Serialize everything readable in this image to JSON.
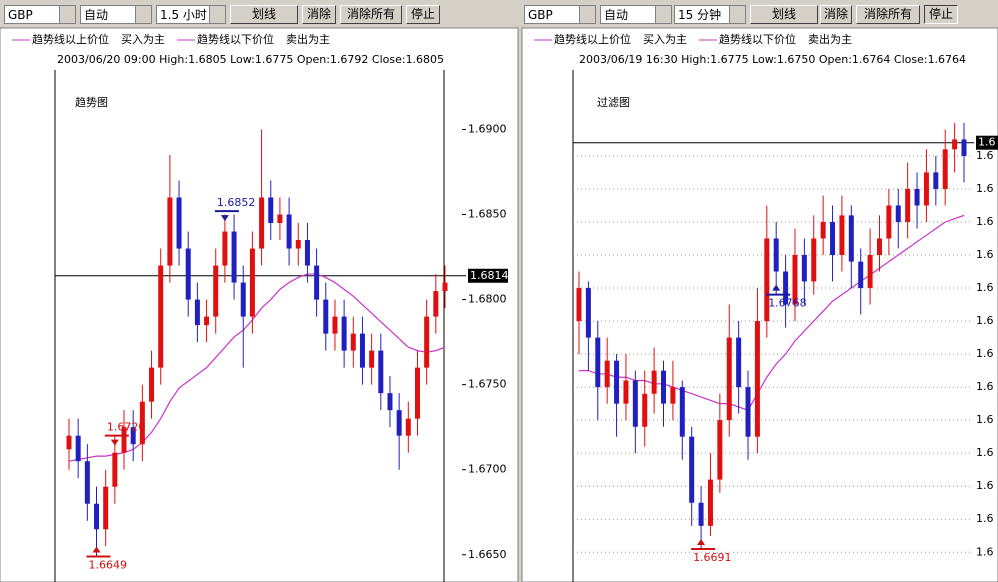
{
  "panels": [
    {
      "toolbar": {
        "symbol": "GBP",
        "mode": "自动",
        "period": "1.5 小时",
        "buttons": [
          "划线",
          "消除",
          "消除所有",
          "停止"
        ]
      },
      "legend": [
        "趋势线以上价位",
        "买入为主",
        "趋势线以下价位",
        "卖出为主"
      ],
      "info": "2003/06/20 09:00 High:1.6805 Low:1.6775 Open:1.6792 Close:1.6805",
      "chart_data": {
        "type": "candlestick",
        "title": "趋势图",
        "ylim": [
          1.6634,
          1.6932
        ],
        "grid": false,
        "yticks": [
          {
            "value": 1.69,
            "label": "1.6900"
          },
          {
            "value": 1.685,
            "label": "1.6850"
          },
          {
            "value": 1.68,
            "label": "1.6800"
          },
          {
            "value": 1.675,
            "label": "1.6750"
          },
          {
            "value": 1.67,
            "label": "1.6700"
          },
          {
            "value": 1.665,
            "label": "1.6650"
          }
        ],
        "current": {
          "value": 1.6814,
          "label": "1.6814"
        },
        "annotations": [
          {
            "value": 1.6852,
            "label": "1.6852",
            "color": "#1a1aa0"
          },
          {
            "value": 1.672,
            "label": "1.6720",
            "color": "#d01010"
          },
          {
            "value": 1.6649,
            "label": "1.6649",
            "color": "#d01010"
          }
        ],
        "candles": [
          [
            1.6712,
            1.673,
            1.67,
            1.672
          ],
          [
            1.672,
            1.673,
            1.6695,
            1.6705
          ],
          [
            1.6705,
            1.6715,
            1.667,
            1.668
          ],
          [
            1.668,
            1.669,
            1.6649,
            1.6665
          ],
          [
            1.6665,
            1.67,
            1.6655,
            1.669
          ],
          [
            1.669,
            1.672,
            1.668,
            1.671
          ],
          [
            1.671,
            1.6735,
            1.67,
            1.6725
          ],
          [
            1.6725,
            1.6735,
            1.6705,
            1.6715
          ],
          [
            1.6715,
            1.675,
            1.6705,
            1.674
          ],
          [
            1.674,
            1.677,
            1.673,
            1.676
          ],
          [
            1.676,
            1.683,
            1.675,
            1.682
          ],
          [
            1.682,
            1.6885,
            1.681,
            1.686
          ],
          [
            1.686,
            1.687,
            1.682,
            1.683
          ],
          [
            1.683,
            1.684,
            1.679,
            1.68
          ],
          [
            1.68,
            1.681,
            1.6775,
            1.6785
          ],
          [
            1.6785,
            1.68,
            1.6775,
            1.679
          ],
          [
            1.679,
            1.683,
            1.678,
            1.682
          ],
          [
            1.682,
            1.685,
            1.681,
            1.684
          ],
          [
            1.684,
            1.685,
            1.68,
            1.681
          ],
          [
            1.681,
            1.682,
            1.676,
            1.679
          ],
          [
            1.679,
            1.684,
            1.678,
            1.683
          ],
          [
            1.683,
            1.69,
            1.682,
            1.686
          ],
          [
            1.686,
            1.687,
            1.6835,
            1.6845
          ],
          [
            1.6845,
            1.686,
            1.6835,
            1.685
          ],
          [
            1.685,
            1.686,
            1.682,
            1.683
          ],
          [
            1.683,
            1.6845,
            1.682,
            1.6835
          ],
          [
            1.6835,
            1.6845,
            1.681,
            1.682
          ],
          [
            1.682,
            1.683,
            1.679,
            1.68
          ],
          [
            1.68,
            1.681,
            1.677,
            1.678
          ],
          [
            1.678,
            1.68,
            1.677,
            1.679
          ],
          [
            1.679,
            1.68,
            1.676,
            1.677
          ],
          [
            1.677,
            1.679,
            1.676,
            1.678
          ],
          [
            1.678,
            1.679,
            1.675,
            1.676
          ],
          [
            1.676,
            1.678,
            1.675,
            1.677
          ],
          [
            1.677,
            1.678,
            1.6735,
            1.6745
          ],
          [
            1.6745,
            1.6755,
            1.6725,
            1.6735
          ],
          [
            1.6735,
            1.6745,
            1.67,
            1.672
          ],
          [
            1.672,
            1.674,
            1.671,
            1.673
          ],
          [
            1.673,
            1.677,
            1.672,
            1.676
          ],
          [
            1.676,
            1.68,
            1.675,
            1.679
          ],
          [
            1.679,
            1.6815,
            1.678,
            1.6805
          ],
          [
            1.6805,
            1.682,
            1.6795,
            1.681
          ]
        ],
        "ma": [
          1.6705,
          1.6706,
          1.6707,
          1.6708,
          1.6708,
          1.6709,
          1.671,
          1.6712,
          1.6716,
          1.6722,
          1.673,
          1.674,
          1.6748,
          1.6752,
          1.6756,
          1.676,
          1.6766,
          1.6772,
          1.6778,
          1.6782,
          1.6788,
          1.6795,
          1.68,
          1.6806,
          1.681,
          1.6813,
          1.6815,
          1.6815,
          1.6813,
          1.681,
          1.6806,
          1.6802,
          1.6797,
          1.6792,
          1.6787,
          1.6782,
          1.6777,
          1.6772,
          1.677,
          1.6769,
          1.677,
          1.6772
        ]
      }
    },
    {
      "toolbar": {
        "symbol": "GBP",
        "mode": "自动",
        "period": "15 分钟",
        "buttons": [
          "划线",
          "消除",
          "消除所有",
          "停止"
        ]
      },
      "legend": [
        "趋势线以上价位",
        "买入为主",
        "趋势线以下价位",
        "卖出为主"
      ],
      "info": "2003/06/19 16:30 High:1.6775 Low:1.6750 Open:1.6764 Close:1.6764",
      "chart_data": {
        "type": "candlestick",
        "title": "过滤图",
        "ylim": [
          1.6681,
          1.68345
        ],
        "grid": true,
        "yticks": [
          {
            "value": 1.681,
            "label": "1.6"
          },
          {
            "value": 1.68,
            "label": "1.6"
          },
          {
            "value": 1.679,
            "label": "1.6"
          },
          {
            "value": 1.678,
            "label": "1.6"
          },
          {
            "value": 1.677,
            "label": "1.6"
          },
          {
            "value": 1.676,
            "label": "1.6"
          },
          {
            "value": 1.675,
            "label": "1.6"
          },
          {
            "value": 1.674,
            "label": "1.6"
          },
          {
            "value": 1.673,
            "label": "1.6"
          },
          {
            "value": 1.672,
            "label": "1.6"
          },
          {
            "value": 1.671,
            "label": "1.6"
          },
          {
            "value": 1.67,
            "label": "1.6"
          },
          {
            "value": 1.669,
            "label": "1.6"
          }
        ],
        "current": {
          "value": 1.6814,
          "label": "1.6"
        },
        "annotations": [
          {
            "value": 1.6768,
            "label": "1.6768",
            "color": "#1a1aa0"
          },
          {
            "value": 1.6691,
            "label": "1.6691",
            "color": "#d01010"
          }
        ],
        "candles": [
          [
            1.676,
            1.6775,
            1.675,
            1.677
          ],
          [
            1.677,
            1.6772,
            1.6745,
            1.6755
          ],
          [
            1.6755,
            1.676,
            1.673,
            1.674
          ],
          [
            1.674,
            1.6755,
            1.6735,
            1.6748
          ],
          [
            1.6748,
            1.675,
            1.6725,
            1.6735
          ],
          [
            1.6735,
            1.675,
            1.673,
            1.6742
          ],
          [
            1.6742,
            1.6745,
            1.672,
            1.6728
          ],
          [
            1.6728,
            1.6745,
            1.6722,
            1.6738
          ],
          [
            1.6738,
            1.6752,
            1.6732,
            1.6745
          ],
          [
            1.6745,
            1.6748,
            1.6728,
            1.6735
          ],
          [
            1.6735,
            1.6748,
            1.673,
            1.674
          ],
          [
            1.674,
            1.6742,
            1.6718,
            1.6725
          ],
          [
            1.6725,
            1.6728,
            1.6698,
            1.6705
          ],
          [
            1.6705,
            1.671,
            1.6691,
            1.6698
          ],
          [
            1.6698,
            1.672,
            1.6695,
            1.6712
          ],
          [
            1.6712,
            1.6738,
            1.6708,
            1.673
          ],
          [
            1.673,
            1.6765,
            1.6725,
            1.6755
          ],
          [
            1.6755,
            1.676,
            1.6732,
            1.674
          ],
          [
            1.674,
            1.6745,
            1.6718,
            1.6725
          ],
          [
            1.6725,
            1.677,
            1.672,
            1.676
          ],
          [
            1.676,
            1.6795,
            1.6755,
            1.6785
          ],
          [
            1.6785,
            1.679,
            1.6768,
            1.6775
          ],
          [
            1.6775,
            1.678,
            1.6758,
            1.6765
          ],
          [
            1.6765,
            1.6788,
            1.676,
            1.678
          ],
          [
            1.678,
            1.6785,
            1.6765,
            1.6772
          ],
          [
            1.6772,
            1.6792,
            1.6768,
            1.6785
          ],
          [
            1.6785,
            1.6798,
            1.678,
            1.679
          ],
          [
            1.679,
            1.6795,
            1.6772,
            1.678
          ],
          [
            1.678,
            1.6798,
            1.6775,
            1.6792
          ],
          [
            1.6792,
            1.6795,
            1.677,
            1.6778
          ],
          [
            1.6778,
            1.6782,
            1.6762,
            1.677
          ],
          [
            1.677,
            1.6788,
            1.6765,
            1.678
          ],
          [
            1.678,
            1.6792,
            1.6775,
            1.6785
          ],
          [
            1.6785,
            1.68,
            1.678,
            1.6795
          ],
          [
            1.6795,
            1.68,
            1.6782,
            1.679
          ],
          [
            1.679,
            1.6808,
            1.6785,
            1.68
          ],
          [
            1.68,
            1.6805,
            1.6788,
            1.6795
          ],
          [
            1.6795,
            1.6812,
            1.679,
            1.6805
          ],
          [
            1.6805,
            1.681,
            1.6795,
            1.68
          ],
          [
            1.68,
            1.6818,
            1.6795,
            1.6812
          ],
          [
            1.6812,
            1.682,
            1.6805,
            1.6815
          ],
          [
            1.6815,
            1.682,
            1.6802,
            1.681
          ]
        ],
        "ma": [
          1.6745,
          1.6745,
          1.6744,
          1.6744,
          1.6743,
          1.6743,
          1.6742,
          1.6742,
          1.6741,
          1.6741,
          1.674,
          1.6739,
          1.6738,
          1.6737,
          1.6736,
          1.6735,
          1.6735,
          1.6734,
          1.6733,
          1.6738,
          1.6743,
          1.6747,
          1.675,
          1.6754,
          1.6757,
          1.676,
          1.6763,
          1.6766,
          1.6768,
          1.677,
          1.6772,
          1.6774,
          1.6776,
          1.6778,
          1.678,
          1.6782,
          1.6784,
          1.6786,
          1.6788,
          1.679,
          1.6791,
          1.6792
        ]
      }
    }
  ]
}
